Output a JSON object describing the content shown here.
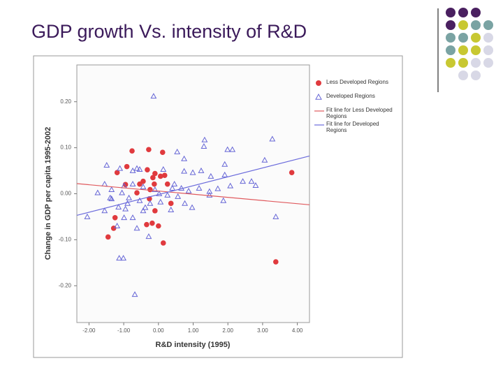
{
  "title": "GDP growth Vs. intensity of R&D",
  "chart_data": {
    "type": "scatter",
    "x_label": "R&D intensity (1995)",
    "y_label": "Change in GDP per capita 1995-2002",
    "xlim": [
      -2.35,
      4.35
    ],
    "ylim": [
      -0.28,
      0.28
    ],
    "xticks": [
      {
        "value": -2,
        "label": "-2.00"
      },
      {
        "value": -1,
        "label": "-1.00"
      },
      {
        "value": 0,
        "label": "0.00"
      },
      {
        "value": 1,
        "label": "1.00"
      },
      {
        "value": 2,
        "label": "2.00"
      },
      {
        "value": 3,
        "label": "3.00"
      },
      {
        "value": 4,
        "label": "4.00"
      }
    ],
    "yticks": [
      {
        "value": -0.2,
        "label": "-0.20"
      },
      {
        "value": -0.1,
        "label": "-0.10"
      },
      {
        "value": 0,
        "label": "0.00"
      },
      {
        "value": 0.1,
        "label": "0.10"
      },
      {
        "value": 0.2,
        "label": "0.20"
      }
    ],
    "legend": "upper right",
    "series": [
      {
        "name": "Less Developed Regions",
        "color": "#e03a3e",
        "marker": "circle",
        "x": [
          -0.76,
          -0.28,
          0.12,
          -0.91,
          -1.19,
          -0.32,
          -0.1,
          0.18,
          -0.16,
          -0.95,
          -0.54,
          -0.44,
          -0.12,
          0.06,
          0.26,
          -0.24,
          0.36,
          -0.1,
          -1.25,
          -1.29,
          -0.18,
          -0.34,
          0.0,
          -1.45,
          0.14,
          3.84,
          3.38,
          -0.62,
          -0.26
        ],
        "values": [
          0.093,
          0.096,
          0.09,
          0.059,
          0.046,
          0.052,
          0.044,
          0.04,
          0.035,
          0.02,
          0.021,
          0.027,
          0.021,
          0.038,
          0.021,
          0.009,
          -0.021,
          -0.037,
          -0.052,
          -0.075,
          -0.064,
          -0.067,
          -0.07,
          -0.094,
          -0.107,
          0.046,
          -0.148,
          0.002,
          -0.011
        ]
      },
      {
        "name": "Developed Regions",
        "color": "#6666d6",
        "marker": "triangle",
        "x": [
          -0.14,
          1.33,
          1.31,
          3.28,
          1.99,
          2.13,
          3.06,
          -1.49,
          -1.11,
          0.54,
          0.74,
          1.23,
          0.99,
          -0.74,
          -0.54,
          1.91,
          1.51,
          1.91,
          2.68,
          2.43,
          2.8,
          2.07,
          1.71,
          -1.55,
          -1.35,
          -0.99,
          -0.74,
          -0.44,
          0.46,
          0.66,
          0.87,
          1.17,
          1.47,
          -1.05,
          -0.85,
          -0.54,
          -0.24,
          0.02,
          0.26,
          0.56,
          0.76,
          0.97,
          1.47,
          1.87,
          -1.75,
          -1.39,
          -1.15,
          -0.95,
          -0.74,
          -0.44,
          -2.05,
          -1.55,
          -0.62,
          -0.28,
          -1.13,
          -1.01,
          -0.68,
          3.38,
          -0.38,
          0.36,
          -1.35,
          0.06,
          0.74,
          0.14,
          -0.62,
          -0.1,
          0.4,
          -0.89,
          -1.19,
          -0.99
        ],
        "values": [
          0.212,
          0.117,
          0.103,
          0.119,
          0.096,
          0.096,
          0.073,
          0.062,
          0.055,
          0.091,
          0.076,
          0.05,
          0.046,
          0.05,
          0.053,
          0.041,
          0.038,
          0.064,
          0.027,
          0.027,
          0.018,
          0.017,
          0.011,
          0.021,
          0.009,
          0.017,
          0.021,
          0.015,
          0.021,
          0.012,
          0.006,
          0.012,
          -0.003,
          0.002,
          -0.009,
          -0.015,
          -0.021,
          0.0,
          -0.003,
          -0.006,
          -0.021,
          -0.03,
          0.005,
          -0.015,
          0.002,
          -0.009,
          -0.029,
          -0.033,
          -0.052,
          -0.037,
          -0.05,
          -0.037,
          -0.075,
          -0.093,
          -0.14,
          -0.14,
          -0.219,
          -0.05,
          -0.03,
          -0.035,
          -0.011,
          -0.018,
          0.049,
          0.053,
          0.055,
          0.009,
          0.012,
          -0.021,
          -0.07,
          -0.052
        ]
      },
      {
        "name": "Fit line for Less Developed Regions",
        "color": "#e05a5e",
        "marker": "line",
        "x": [
          -2.35,
          4.35
        ],
        "values": [
          0.022,
          -0.024
        ]
      },
      {
        "name": "Fit line for Developed Regions",
        "color": "#6b6bdc",
        "marker": "line",
        "x": [
          -2.35,
          4.35
        ],
        "values": [
          -0.047,
          0.082
        ]
      }
    ]
  }
}
